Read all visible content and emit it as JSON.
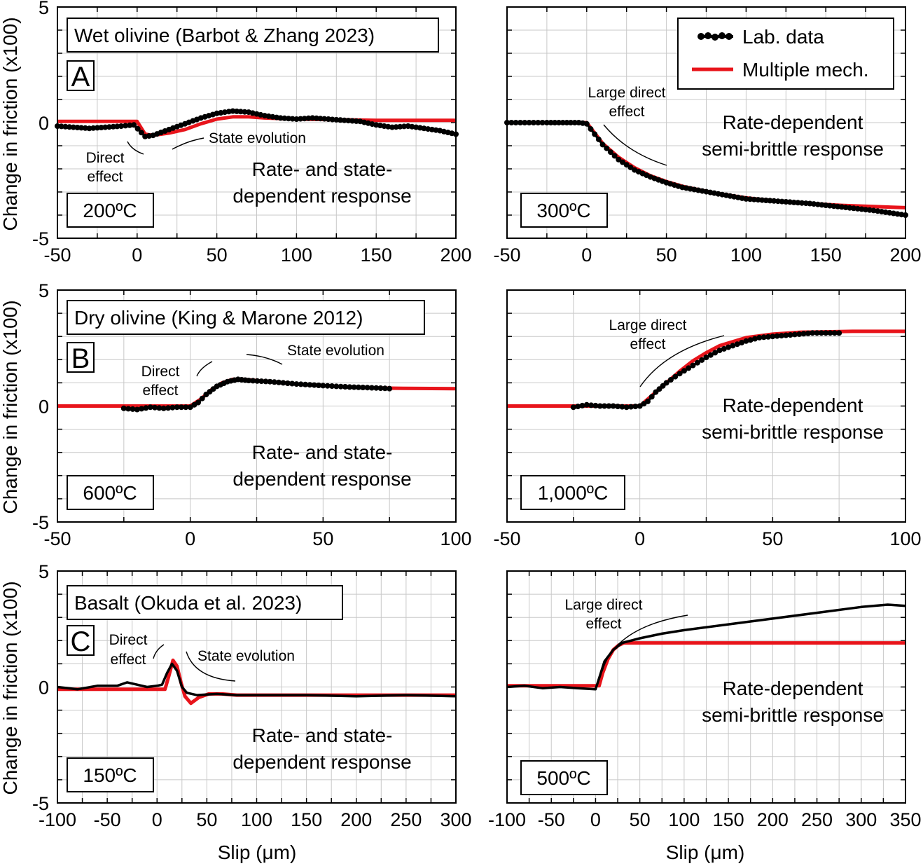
{
  "labels": {
    "ylabel": "Change in friction (x100)",
    "xlabel": "Slip (μm)"
  },
  "legend": {
    "lab": "Lab. data",
    "model": "Multiple mech.",
    "colors": {
      "lab": "#000000",
      "model": "#e8141b"
    }
  },
  "rows": [
    {
      "letter": "A",
      "title": "Wet olivine (Barbot & Zhang 2023)",
      "left": {
        "temp": "200ºC",
        "response": [
          "Rate- and state-",
          "dependent response"
        ],
        "labels": [
          "Direct",
          "effect",
          "State evolution"
        ]
      },
      "right": {
        "temp": "300ºC",
        "response": [
          "Rate-dependent",
          "semi-brittle response"
        ],
        "labels": [
          "Large direct",
          "effect"
        ]
      }
    },
    {
      "letter": "B",
      "title": "Dry olivine (King & Marone 2012)",
      "left": {
        "temp": "600ºC",
        "response": [
          "Rate- and state-",
          "dependent response"
        ],
        "labels": [
          "Direct",
          "effect",
          "State evolution"
        ]
      },
      "right": {
        "temp": "1,000ºC",
        "response": [
          "Rate-dependent",
          "semi-brittle response"
        ],
        "labels": [
          "Large direct",
          "effect"
        ]
      }
    },
    {
      "letter": "C",
      "title": "Basalt (Okuda et al. 2023)",
      "left": {
        "temp": "150ºC",
        "response": [
          "Rate- and state-",
          "dependent response"
        ],
        "labels": [
          "Direct",
          "effect",
          "State evolution"
        ]
      },
      "right": {
        "temp": "500ºC",
        "response": [
          "Rate-dependent",
          "semi-brittle response"
        ],
        "labels": [
          "Large direct",
          "effect"
        ]
      }
    }
  ],
  "chart_data": [
    {
      "type": "line",
      "panel": "A-left",
      "xlim": [
        -50,
        200
      ],
      "ylim": [
        -5,
        5
      ],
      "grid": true,
      "xticks": [
        -50,
        0,
        50,
        100,
        150,
        200
      ],
      "yticks": [
        -5,
        0,
        5
      ],
      "series": [
        {
          "name": "Lab. data",
          "style": "dots",
          "x": [
            -50,
            -30,
            -10,
            -2,
            5,
            10,
            20,
            30,
            40,
            50,
            60,
            70,
            80,
            90,
            100,
            110,
            120,
            130,
            140,
            150,
            160,
            170,
            180,
            190,
            200
          ],
          "y": [
            -0.15,
            -0.25,
            -0.15,
            -0.1,
            -0.6,
            -0.55,
            -0.3,
            -0.05,
            0.2,
            0.4,
            0.5,
            0.45,
            0.3,
            0.2,
            0.15,
            0.2,
            0.15,
            0.1,
            0.05,
            -0.1,
            -0.2,
            -0.15,
            -0.25,
            -0.35,
            -0.5
          ]
        },
        {
          "name": "Multiple mech.",
          "x": [
            -50,
            0,
            5,
            10,
            20,
            30,
            40,
            50,
            60,
            70,
            80,
            100,
            150,
            200
          ],
          "y": [
            0.05,
            0.05,
            -0.5,
            -0.55,
            -0.45,
            -0.3,
            -0.05,
            0.15,
            0.25,
            0.25,
            0.2,
            0.15,
            0.1,
            0.1
          ]
        }
      ]
    },
    {
      "type": "line",
      "panel": "A-right",
      "xlim": [
        -50,
        200
      ],
      "ylim": [
        -5,
        5
      ],
      "grid": true,
      "xticks": [
        -50,
        0,
        50,
        100,
        150,
        200
      ],
      "yticks": [
        -5,
        0,
        5
      ],
      "series": [
        {
          "name": "Lab. data",
          "style": "dots",
          "x": [
            -50,
            -25,
            -5,
            0,
            5,
            10,
            20,
            30,
            40,
            50,
            60,
            80,
            100,
            120,
            140,
            160,
            180,
            200
          ],
          "y": [
            0,
            0,
            0,
            -0.05,
            -0.5,
            -0.95,
            -1.6,
            -2.05,
            -2.35,
            -2.6,
            -2.8,
            -3.05,
            -3.3,
            -3.4,
            -3.5,
            -3.65,
            -3.8,
            -4.0
          ]
        },
        {
          "name": "Multiple mech.",
          "x": [
            -50,
            0,
            10,
            20,
            30,
            40,
            50,
            60,
            80,
            100,
            120,
            140,
            160,
            180,
            200
          ],
          "y": [
            0,
            0,
            -0.9,
            -1.5,
            -1.95,
            -2.3,
            -2.55,
            -2.75,
            -3.05,
            -3.25,
            -3.4,
            -3.5,
            -3.58,
            -3.63,
            -3.68
          ]
        }
      ]
    },
    {
      "type": "line",
      "panel": "B-left",
      "xlim": [
        -50,
        100
      ],
      "ylim": [
        -5,
        5
      ],
      "grid": true,
      "xticks": [
        -50,
        0,
        50,
        100
      ],
      "yticks": [
        -5,
        0,
        5
      ],
      "series": [
        {
          "name": "Lab. data",
          "style": "dots",
          "x": [
            -25,
            -20,
            -15,
            -10,
            -5,
            0,
            3,
            6,
            10,
            14,
            18,
            22,
            30,
            40,
            50,
            60,
            70,
            75
          ],
          "y": [
            -0.1,
            -0.15,
            -0.05,
            -0.1,
            -0.05,
            -0.05,
            0.15,
            0.5,
            0.85,
            1.05,
            1.15,
            1.1,
            1.05,
            0.95,
            0.88,
            0.82,
            0.78,
            0.75
          ]
        },
        {
          "name": "Multiple mech.",
          "x": [
            -50,
            0,
            4,
            8,
            12,
            16,
            20,
            25,
            30,
            40,
            50,
            60,
            70,
            80,
            100
          ],
          "y": [
            0,
            0,
            0.3,
            0.7,
            1.0,
            1.15,
            1.15,
            1.1,
            1.05,
            0.95,
            0.88,
            0.82,
            0.78,
            0.76,
            0.75
          ]
        }
      ]
    },
    {
      "type": "line",
      "panel": "B-right",
      "xlim": [
        -50,
        100
      ],
      "ylim": [
        -5,
        5
      ],
      "grid": true,
      "xticks": [
        -50,
        0,
        50,
        100
      ],
      "yticks": [
        -5,
        0,
        5
      ],
      "series": [
        {
          "name": "Lab. data",
          "style": "dots",
          "x": [
            -25,
            -20,
            -15,
            -10,
            -5,
            0,
            3,
            6,
            10,
            15,
            20,
            25,
            30,
            35,
            40,
            45,
            50,
            55,
            60,
            65,
            70,
            75
          ],
          "y": [
            -0.05,
            0.05,
            0,
            0,
            -0.05,
            0,
            0.2,
            0.6,
            1.0,
            1.4,
            1.75,
            2.1,
            2.4,
            2.6,
            2.8,
            2.95,
            3.0,
            3.05,
            3.1,
            3.15,
            3.15,
            3.15
          ]
        },
        {
          "name": "Multiple mech.",
          "x": [
            -50,
            0,
            5,
            10,
            15,
            20,
            25,
            30,
            40,
            50,
            60,
            70,
            80,
            100
          ],
          "y": [
            0,
            0,
            0.5,
            1.0,
            1.5,
            1.95,
            2.3,
            2.6,
            2.95,
            3.1,
            3.18,
            3.2,
            3.22,
            3.22
          ]
        }
      ]
    },
    {
      "type": "line",
      "panel": "C-left",
      "xlim": [
        -100,
        300
      ],
      "ylim": [
        -5,
        5
      ],
      "grid": true,
      "xticks": [
        -100,
        -50,
        0,
        50,
        100,
        150,
        200,
        250,
        300
      ],
      "yticks": [
        -5,
        0,
        5
      ],
      "series": [
        {
          "name": "Lab. data",
          "x": [
            -100,
            -80,
            -60,
            -40,
            -30,
            -20,
            -10,
            0,
            5,
            10,
            15,
            20,
            25,
            30,
            40,
            60,
            80,
            100,
            150,
            200,
            250,
            300
          ],
          "y": [
            0,
            -0.1,
            0.05,
            0.05,
            0.2,
            0.1,
            0,
            0.05,
            0.1,
            0.6,
            1.0,
            0.7,
            0.0,
            -0.25,
            -0.35,
            -0.3,
            -0.35,
            -0.35,
            -0.35,
            -0.4,
            -0.35,
            -0.4
          ]
        },
        {
          "name": "Multiple mech.",
          "x": [
            -100,
            8,
            12,
            16,
            20,
            24,
            28,
            34,
            42,
            52,
            65,
            80,
            100,
            300
          ],
          "y": [
            -0.1,
            -0.1,
            0.5,
            1.15,
            0.9,
            0.2,
            -0.4,
            -0.7,
            -0.45,
            -0.3,
            -0.3,
            -0.35,
            -0.35,
            -0.35
          ]
        }
      ]
    },
    {
      "type": "line",
      "panel": "C-right",
      "xlim": [
        -100,
        350
      ],
      "ylim": [
        -5,
        5
      ],
      "grid": true,
      "xticks": [
        -100,
        -50,
        0,
        50,
        100,
        150,
        200,
        250,
        300,
        350
      ],
      "yticks": [
        -5,
        0,
        5
      ],
      "series": [
        {
          "name": "Lab. data",
          "x": [
            -100,
            -80,
            -60,
            -40,
            -20,
            0,
            5,
            10,
            20,
            30,
            40,
            50,
            75,
            100,
            150,
            200,
            250,
            300,
            330,
            350
          ],
          "y": [
            0,
            0.05,
            -0.05,
            0,
            -0.05,
            -0.1,
            0.5,
            1.1,
            1.6,
            1.9,
            2.0,
            2.1,
            2.3,
            2.45,
            2.7,
            2.95,
            3.2,
            3.45,
            3.55,
            3.5
          ]
        },
        {
          "name": "Multiple mech.",
          "x": [
            -100,
            4,
            8,
            14,
            20,
            26,
            32,
            40,
            350
          ],
          "y": [
            0.05,
            0.05,
            0.6,
            1.2,
            1.6,
            1.8,
            1.9,
            1.9,
            1.9
          ]
        }
      ]
    }
  ]
}
